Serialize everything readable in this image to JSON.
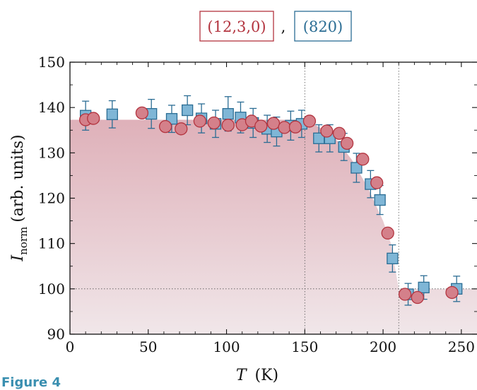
{
  "figure_caption": "Figure 4",
  "chart_data": {
    "type": "scatter",
    "xlabel": {
      "symbol": "T",
      "unit": "(K)"
    },
    "ylabel": {
      "symbol": "I",
      "subscript": "norm",
      "unit": "(arb. units)"
    },
    "xlim": [
      0,
      260
    ],
    "ylim": [
      90,
      150
    ],
    "xticks": [
      "0",
      "50",
      "100",
      "150",
      "200",
      "250"
    ],
    "yticks": [
      "90",
      "100",
      "110",
      "120",
      "130",
      "140",
      "150"
    ],
    "grid": false,
    "legend": {
      "placement": "top-center",
      "separator": ","
    },
    "reference_lines": {
      "vertical_x": [
        150,
        210
      ],
      "horizontal_y": [
        100
      ]
    },
    "shaded_region": [
      {
        "x": 0,
        "y": 137.3
      },
      {
        "x": 150,
        "y": 137.3
      },
      {
        "x": 160,
        "y": 135.5
      },
      {
        "x": 170,
        "y": 133
      },
      {
        "x": 180,
        "y": 128.5
      },
      {
        "x": 190,
        "y": 122.5
      },
      {
        "x": 200,
        "y": 115
      },
      {
        "x": 205,
        "y": 110
      },
      {
        "x": 210,
        "y": 100
      },
      {
        "x": 260,
        "y": 100
      }
    ],
    "series": [
      {
        "name": "(12,3,0)",
        "marker": "circle",
        "color": "#b3343f",
        "fill": "#d4808a",
        "points": [
          {
            "x": 10,
            "y": 137.3
          },
          {
            "x": 15,
            "y": 137.6
          },
          {
            "x": 46,
            "y": 138.8
          },
          {
            "x": 61,
            "y": 135.8
          },
          {
            "x": 71,
            "y": 135.3
          },
          {
            "x": 83,
            "y": 137.0
          },
          {
            "x": 92,
            "y": 136.6
          },
          {
            "x": 101,
            "y": 136.1
          },
          {
            "x": 110,
            "y": 136.2
          },
          {
            "x": 116,
            "y": 137.0
          },
          {
            "x": 122,
            "y": 135.9
          },
          {
            "x": 130,
            "y": 136.5
          },
          {
            "x": 137,
            "y": 135.6
          },
          {
            "x": 144,
            "y": 135.7
          },
          {
            "x": 153,
            "y": 137.0
          },
          {
            "x": 164,
            "y": 134.8
          },
          {
            "x": 172,
            "y": 134.3
          },
          {
            "x": 177,
            "y": 132.1
          },
          {
            "x": 187,
            "y": 128.6
          },
          {
            "x": 196,
            "y": 123.4
          },
          {
            "x": 203,
            "y": 112.3
          },
          {
            "x": 214,
            "y": 98.8
          },
          {
            "x": 222,
            "y": 98.1
          },
          {
            "x": 244,
            "y": 99.2
          }
        ]
      },
      {
        "name": "(820)",
        "marker": "square",
        "color": "#2b6d94",
        "fill": "#7fb6d6",
        "points": [
          {
            "x": 10,
            "y": 138.2,
            "err": 3.2
          },
          {
            "x": 27,
            "y": 138.5,
            "err": 3.0
          },
          {
            "x": 52,
            "y": 138.6,
            "err": 3.2
          },
          {
            "x": 65,
            "y": 137.5,
            "err": 3.0
          },
          {
            "x": 75,
            "y": 139.4,
            "err": 3.2
          },
          {
            "x": 84,
            "y": 137.6,
            "err": 3.2
          },
          {
            "x": 93,
            "y": 136.4,
            "err": 3.0
          },
          {
            "x": 101,
            "y": 138.6,
            "err": 3.8
          },
          {
            "x": 109,
            "y": 137.8,
            "err": 3.4
          },
          {
            "x": 117,
            "y": 136.6,
            "err": 3.2
          },
          {
            "x": 126,
            "y": 135.3,
            "err": 3.0
          },
          {
            "x": 132,
            "y": 134.7,
            "err": 3.2
          },
          {
            "x": 141,
            "y": 136.0,
            "err": 3.2
          },
          {
            "x": 148,
            "y": 136.4,
            "err": 3.0
          },
          {
            "x": 159,
            "y": 133.2,
            "err": 3.0
          },
          {
            "x": 166,
            "y": 133.2,
            "err": 3.0
          },
          {
            "x": 175,
            "y": 131.3,
            "err": 3.0
          },
          {
            "x": 183,
            "y": 126.7,
            "err": 3.2
          },
          {
            "x": 192,
            "y": 123.1,
            "err": 3.0
          },
          {
            "x": 198,
            "y": 119.6,
            "err": 3.2
          },
          {
            "x": 206,
            "y": 106.7,
            "err": 3.0
          },
          {
            "x": 216,
            "y": 98.8,
            "err": 2.4
          },
          {
            "x": 226,
            "y": 100.3,
            "err": 2.6
          },
          {
            "x": 247,
            "y": 100.0,
            "err": 2.8
          }
        ]
      }
    ]
  }
}
